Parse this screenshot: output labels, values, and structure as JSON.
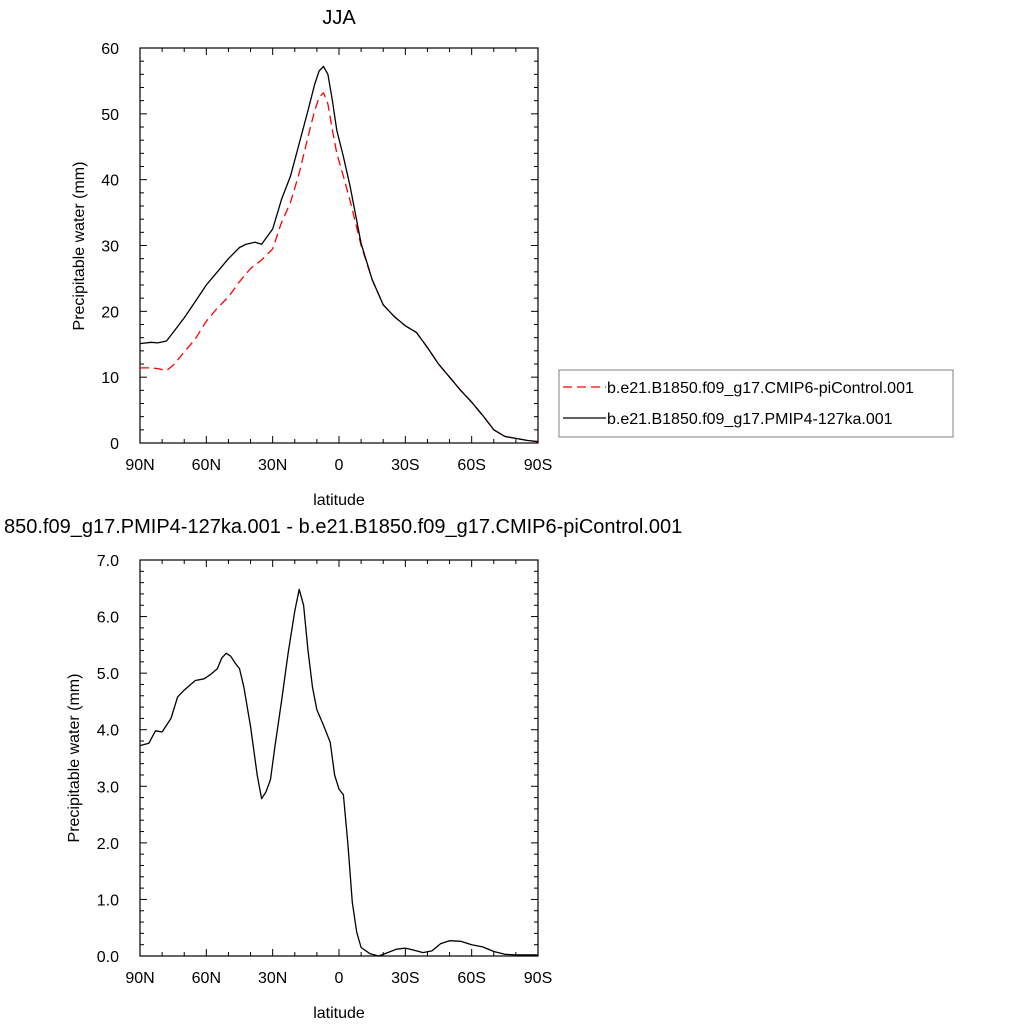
{
  "chart_data": [
    {
      "type": "line",
      "title": "JJA",
      "xlabel": "latitude",
      "ylabel": "Precipitable water (mm)",
      "xlim": [
        90,
        -90
      ],
      "ylim": [
        0,
        60
      ],
      "x_ticks": [
        {
          "value": 90,
          "label": "90N"
        },
        {
          "value": 60,
          "label": "60N"
        },
        {
          "value": 30,
          "label": "30N"
        },
        {
          "value": 0,
          "label": "0"
        },
        {
          "value": -30,
          "label": "30S"
        },
        {
          "value": -60,
          "label": "60S"
        },
        {
          "value": -90,
          "label": "90S"
        }
      ],
      "y_ticks": [
        {
          "value": 0,
          "label": "0"
        },
        {
          "value": 10,
          "label": "10"
        },
        {
          "value": 20,
          "label": "20"
        },
        {
          "value": 30,
          "label": "30"
        },
        {
          "value": 40,
          "label": "40"
        },
        {
          "value": 50,
          "label": "50"
        },
        {
          "value": 60,
          "label": "60"
        }
      ],
      "grid": false,
      "legend_position": "right",
      "series": [
        {
          "name": "b.e21.B1850.f09_g17.CMIP6-piControl.001",
          "color": "#ff0000",
          "dash": "dashed",
          "x": [
            90,
            85,
            82,
            78,
            75,
            70,
            65,
            60,
            55,
            50,
            45,
            40,
            35,
            30,
            26,
            22,
            18,
            14,
            11,
            9,
            7,
            5,
            3,
            1,
            -2,
            -5,
            -10,
            -15,
            -20,
            -25,
            -30,
            -35,
            -40,
            -45,
            -50,
            -55,
            -60,
            -65,
            -70,
            -75,
            -80,
            -85,
            -90
          ],
          "y": [
            11.4,
            11.4,
            11.3,
            11.0,
            11.8,
            13.8,
            15.8,
            18.5,
            20.5,
            22.2,
            24.5,
            26.5,
            27.8,
            29.5,
            33.5,
            36.5,
            41.0,
            46.5,
            50.5,
            52.5,
            53.2,
            51.5,
            47.5,
            44.0,
            40.5,
            36.8,
            30.0,
            24.8,
            21.0,
            19.2,
            17.8,
            16.8,
            14.5,
            12.0,
            10.0,
            8.0,
            6.2,
            4.2,
            2.0,
            1.0,
            0.7,
            0.4,
            0.2
          ]
        },
        {
          "name": "b.e21.B1850.f09_g17.PMIP4-127ka.001",
          "color": "#000000",
          "dash": "solid",
          "x": [
            90,
            85,
            82,
            78,
            75,
            70,
            65,
            60,
            55,
            50,
            45,
            42,
            38,
            35,
            30,
            26,
            22,
            18,
            14,
            11,
            9,
            7,
            5,
            3,
            1,
            -2,
            -5,
            -10,
            -15,
            -20,
            -25,
            -30,
            -35,
            -40,
            -45,
            -50,
            -55,
            -60,
            -65,
            -70,
            -75,
            -80,
            -85,
            -90
          ],
          "y": [
            15.1,
            15.3,
            15.2,
            15.5,
            16.8,
            19.0,
            21.5,
            24.0,
            26.0,
            28.0,
            29.7,
            30.2,
            30.5,
            30.2,
            32.5,
            37.0,
            40.5,
            45.5,
            50.5,
            54.5,
            56.5,
            57.2,
            56.0,
            52.0,
            47.5,
            43.5,
            39.0,
            30.3,
            24.8,
            21.0,
            19.2,
            17.8,
            16.8,
            14.5,
            12.0,
            10.0,
            8.0,
            6.2,
            4.2,
            2.0,
            1.0,
            0.7,
            0.4,
            0.2
          ]
        }
      ]
    },
    {
      "type": "line",
      "title": "850.f09_g17.PMIP4-127ka.001 - b.e21.B1850.f09_g17.CMIP6-piControl.001",
      "xlabel": "latitude",
      "ylabel": "Precipitable water (mm)",
      "xlim": [
        90,
        -90
      ],
      "ylim": [
        0,
        7
      ],
      "x_ticks": [
        {
          "value": 90,
          "label": "90N"
        },
        {
          "value": 60,
          "label": "60N"
        },
        {
          "value": 30,
          "label": "30N"
        },
        {
          "value": 0,
          "label": "0"
        },
        {
          "value": -30,
          "label": "30S"
        },
        {
          "value": -60,
          "label": "60S"
        },
        {
          "value": -90,
          "label": "90S"
        }
      ],
      "y_ticks": [
        {
          "value": 0,
          "label": "0.0"
        },
        {
          "value": 1,
          "label": "1.0"
        },
        {
          "value": 2,
          "label": "2.0"
        },
        {
          "value": 3,
          "label": "3.0"
        },
        {
          "value": 4,
          "label": "4.0"
        },
        {
          "value": 5,
          "label": "5.0"
        },
        {
          "value": 6,
          "label": "6.0"
        },
        {
          "value": 7,
          "label": "7.0"
        }
      ],
      "grid": false,
      "series": [
        {
          "color": "#000000",
          "dash": "solid",
          "x": [
            90,
            86,
            83,
            80,
            76,
            73,
            70,
            65,
            61,
            58,
            55,
            53,
            51,
            49,
            47,
            45,
            43,
            40,
            37,
            35,
            33,
            31,
            29,
            26,
            23,
            20,
            18,
            16,
            14,
            12,
            10,
            7,
            4,
            2,
            0,
            -2,
            -4,
            -6,
            -8,
            -10,
            -14,
            -18,
            -22,
            -26,
            -30,
            -34,
            -38,
            -42,
            -46,
            -50,
            -55,
            -60,
            -65,
            -70,
            -75,
            -80,
            -85,
            -90
          ],
          "y": [
            3.72,
            3.76,
            3.98,
            3.96,
            4.2,
            4.58,
            4.7,
            4.87,
            4.9,
            4.98,
            5.08,
            5.27,
            5.35,
            5.3,
            5.18,
            5.08,
            4.75,
            4.05,
            3.2,
            2.78,
            2.9,
            3.12,
            3.7,
            4.5,
            5.35,
            6.1,
            6.48,
            6.2,
            5.4,
            4.75,
            4.35,
            4.08,
            3.78,
            3.2,
            2.95,
            2.85,
            2.0,
            0.95,
            0.42,
            0.15,
            0.04,
            0.0,
            0.06,
            0.12,
            0.14,
            0.1,
            0.06,
            0.09,
            0.22,
            0.27,
            0.26,
            0.2,
            0.16,
            0.08,
            0.03,
            0.02,
            0.02,
            0.02
          ]
        }
      ]
    }
  ]
}
